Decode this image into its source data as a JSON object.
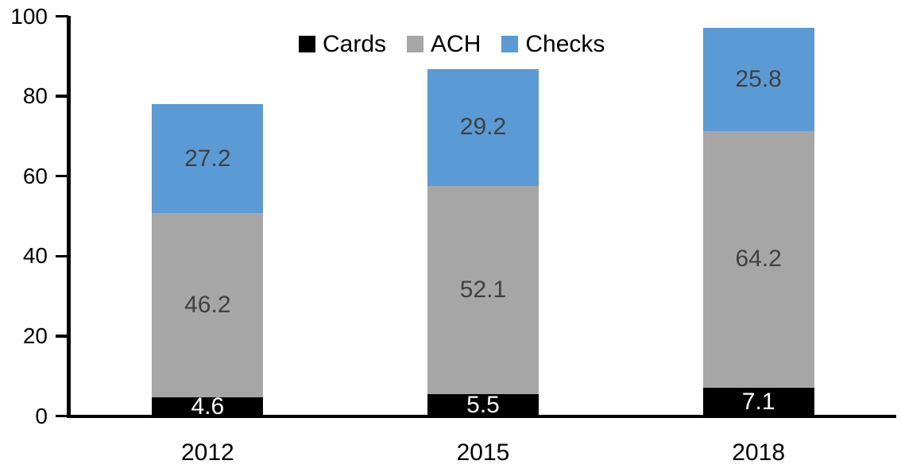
{
  "chart_data": {
    "type": "bar",
    "stacked": true,
    "title": "",
    "xlabel": "",
    "ylabel": "",
    "categories": [
      "2012",
      "2015",
      "2018"
    ],
    "series": [
      {
        "name": "Cards",
        "color": "#000000",
        "label_color": "#ffffff",
        "values": [
          4.6,
          5.5,
          7.1
        ]
      },
      {
        "name": "ACH",
        "color": "#a6a6a6",
        "label_color": "#404040",
        "values": [
          46.2,
          52.1,
          64.2
        ]
      },
      {
        "name": "Checks",
        "color": "#5b9bd5",
        "label_color": "#404040",
        "values": [
          27.2,
          29.2,
          25.8
        ]
      }
    ],
    "totals": [
      78.0,
      86.8,
      97.1
    ],
    "ylim": [
      0,
      100
    ],
    "yticks": [
      0,
      20,
      40,
      60,
      80,
      100
    ],
    "grid": false,
    "legend_position": "top-center",
    "value_labels_decimals": 1
  },
  "colors": {
    "axis": "#000000",
    "background": "#ffffff",
    "cards": "#000000",
    "ach": "#a6a6a6",
    "checks": "#5b9bd5",
    "label_on_dark": "#ffffff",
    "label_on_light": "#404040"
  }
}
